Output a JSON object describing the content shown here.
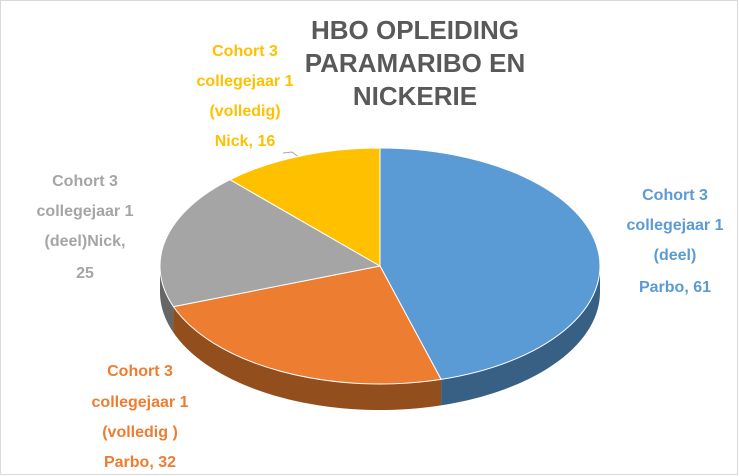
{
  "chart_data": {
    "type": "pie3d",
    "title": "HBO OPLEIDING PARAMARIBO EN NICKERIE",
    "values": [
      61,
      32,
      25,
      16
    ],
    "value_labels": [
      [
        "Cohort 3",
        "collegejaar 1",
        "(deel)",
        "Parbo, 61"
      ],
      [
        "Cohort 3",
        "collegejaar 1",
        "(volledig )",
        "Parbo, 32"
      ],
      [
        "Cohort  3",
        "collegejaar 1",
        "(deel)Nick,",
        "25"
      ],
      [
        "Cohort  3",
        "collegejaar 1",
        "(volledig)",
        "Nick, 16"
      ]
    ],
    "colors": [
      "#5b9bd5",
      "#ed7d31",
      "#a5a5a5",
      "#ffc000"
    ]
  }
}
